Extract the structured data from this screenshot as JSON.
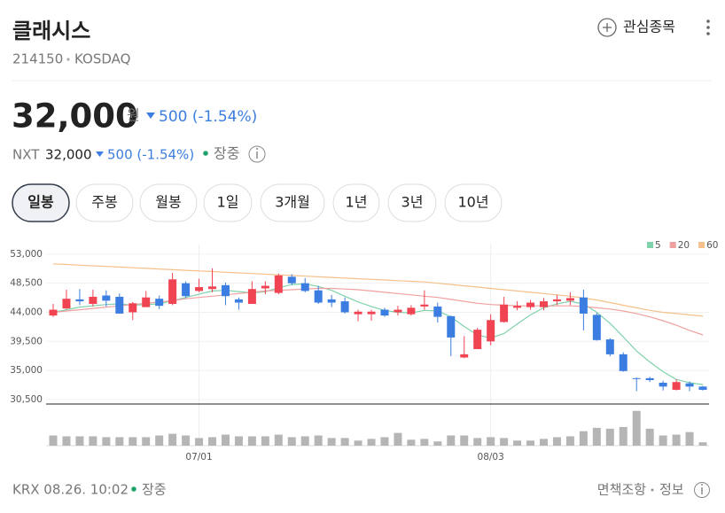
{
  "header": {
    "name": "클래시스",
    "code": "214150",
    "market": "KOSDAQ",
    "watch": "관심종목"
  },
  "price": {
    "value": "32,000",
    "unit": "원",
    "change": "500 (-1.54%)"
  },
  "nxt": {
    "label": "NXT",
    "price": "32,000",
    "change": "500 (-1.54%)",
    "status": "장중"
  },
  "tabs": [
    "일봉",
    "주봉",
    "월봉",
    "1일",
    "3개월",
    "1년",
    "3년",
    "10년"
  ],
  "chart_data": {
    "type": "candlestick",
    "categories": [
      null,
      null,
      null,
      null,
      null,
      null,
      null,
      null,
      null,
      null,
      null,
      "07/01",
      null,
      null,
      null,
      null,
      null,
      null,
      null,
      null,
      null,
      null,
      null,
      null,
      null,
      null,
      null,
      null,
      null,
      null,
      null,
      null,
      null,
      "08/03",
      null,
      null,
      null,
      null,
      null,
      null,
      null,
      null,
      null,
      null,
      null,
      null,
      null,
      null,
      null,
      null
    ],
    "open": [
      43500,
      44600,
      46000,
      45300,
      46600,
      46400,
      44000,
      44800,
      46100,
      45300,
      48500,
      47300,
      47600,
      48200,
      46000,
      45300,
      47700,
      47000,
      49500,
      48500,
      47400,
      46000,
      45700,
      43700,
      43700,
      44400,
      44000,
      43700,
      44900,
      44900,
      43400,
      37000,
      38300,
      39500,
      42500,
      44700,
      44800,
      44800,
      45700,
      45800,
      46300,
      43600,
      39800,
      37500,
      33800,
      33800,
      33100,
      32000,
      33000,
      32500
    ],
    "close": [
      44400,
      46100,
      45700,
      46400,
      45800,
      43800,
      45400,
      46300,
      45000,
      49100,
      46500,
      47900,
      48000,
      46500,
      45500,
      47600,
      48100,
      49700,
      48500,
      47300,
      45500,
      45500,
      44000,
      44100,
      44100,
      43500,
      44400,
      44700,
      45200,
      43300,
      40100,
      37500,
      41300,
      42800,
      45200,
      45000,
      45500,
      45700,
      46000,
      46200,
      43800,
      39700,
      37500,
      34900,
      33700,
      33500,
      32500,
      33200,
      32500,
      32000
    ],
    "high": [
      45300,
      47500,
      47600,
      47500,
      47400,
      46900,
      45600,
      47300,
      46600,
      50100,
      48800,
      49200,
      50800,
      48600,
      46300,
      48800,
      48800,
      50000,
      49900,
      49300,
      48100,
      46700,
      46300,
      44400,
      44400,
      44700,
      45000,
      45100,
      47400,
      45500,
      43500,
      40300,
      41600,
      43700,
      46400,
      45700,
      45900,
      46200,
      46700,
      47100,
      47500,
      43900,
      40000,
      37800,
      33900,
      34000,
      33400,
      33600,
      33300,
      32600
    ],
    "low": [
      43300,
      44500,
      45100,
      44900,
      44900,
      43800,
      42800,
      44800,
      44500,
      45100,
      46200,
      47100,
      47100,
      45100,
      44400,
      45300,
      46800,
      46800,
      48200,
      47100,
      45300,
      44800,
      43800,
      42600,
      42700,
      43300,
      43500,
      43500,
      44400,
      42400,
      37200,
      36900,
      38300,
      38900,
      42400,
      44300,
      44400,
      44300,
      45100,
      45100,
      41200,
      39600,
      37200,
      34800,
      31800,
      33200,
      31900,
      31900,
      31800,
      31900
    ],
    "up_color": "#f04452",
    "down_color": "#3b7de0",
    "ylim": [
      29800,
      54600
    ],
    "yticks": [
      {
        "value": 30500,
        "label": "30,500"
      },
      {
        "value": 35000,
        "label": "35,000"
      },
      {
        "value": 39500,
        "label": "39,500"
      },
      {
        "value": 44000,
        "label": "44,000"
      },
      {
        "value": 48500,
        "label": "48,500"
      },
      {
        "value": 53000,
        "label": "53,000"
      }
    ],
    "grid": true,
    "series": [
      {
        "name": "5",
        "color": "#7fd3aa",
        "values": [
          44000,
          44400,
          44800,
          45000,
          45200,
          45300,
          45100,
          45200,
          45300,
          45800,
          46300,
          46800,
          47300,
          47400,
          47200,
          47000,
          47200,
          47800,
          48300,
          48400,
          48000,
          47400,
          46500,
          45600,
          44900,
          44300,
          44000,
          43900,
          44300,
          44200,
          43300,
          41800,
          40500,
          40000,
          40700,
          42200,
          43600,
          44700,
          45300,
          45700,
          45300,
          44000,
          42300,
          40200,
          38000,
          36300,
          34800,
          33600,
          33100,
          32800
        ]
      },
      {
        "name": "20",
        "color": "#f0a0a0",
        "values": [
          44000,
          44200,
          44400,
          44600,
          44800,
          45000,
          45200,
          45400,
          45600,
          45800,
          46100,
          46300,
          46500,
          46700,
          46900,
          47100,
          47300,
          47400,
          47500,
          47600,
          47700,
          47700,
          47600,
          47500,
          47300,
          47100,
          46900,
          46700,
          46500,
          46300,
          46000,
          45700,
          45400,
          45200,
          45100,
          45000,
          45000,
          45000,
          45000,
          45000,
          44900,
          44700,
          44500,
          44200,
          43800,
          43300,
          42700,
          42000,
          41200,
          40500
        ]
      },
      {
        "name": "60",
        "color": "#f5c08a",
        "values": [
          51500,
          51400,
          51300,
          51200,
          51100,
          51000,
          50900,
          50800,
          50700,
          50600,
          50500,
          50400,
          50300,
          50200,
          50100,
          50000,
          49900,
          49800,
          49700,
          49600,
          49500,
          49400,
          49300,
          49200,
          49100,
          49000,
          48900,
          48800,
          48700,
          48500,
          48300,
          48100,
          47900,
          47700,
          47500,
          47300,
          47100,
          46900,
          46700,
          46500,
          46200,
          45900,
          45500,
          45100,
          44700,
          44300,
          44000,
          43800,
          43600,
          43400
        ]
      }
    ],
    "volume": {
      "color": "#b5b5b5",
      "ylim": [
        0,
        48
      ],
      "values": [
        12,
        11,
        11,
        11,
        10,
        10,
        10,
        10,
        12,
        14,
        12,
        9,
        10,
        13,
        11,
        11,
        11,
        13,
        10,
        11,
        12,
        9,
        9,
        6,
        8,
        10,
        15,
        7,
        8,
        5,
        12,
        12,
        9,
        10,
        9,
        6,
        6,
        8,
        10,
        11,
        17,
        21,
        20,
        22,
        41,
        20,
        12,
        13,
        16,
        4
      ]
    }
  },
  "footer": {
    "source": "KRX 08.26. 10:02",
    "status": "장중",
    "disclaimer": "면책조항",
    "info": "정보"
  }
}
